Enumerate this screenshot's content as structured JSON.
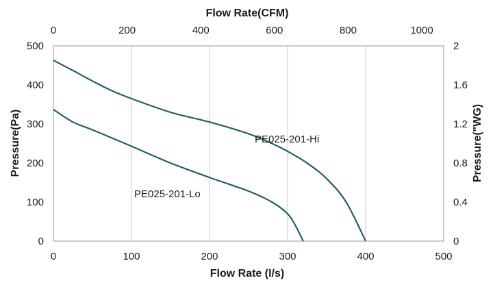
{
  "chart_data": {
    "type": "line",
    "x_bottom": {
      "label": "Flow Rate (l/s)",
      "range": [
        0,
        500
      ],
      "ticks": [
        0,
        100,
        200,
        300,
        400,
        500
      ]
    },
    "x_top": {
      "label": "Flow Rate(CFM)",
      "range": [
        0,
        1059.44
      ],
      "ticks": [
        0,
        200,
        400,
        600,
        800,
        1000
      ]
    },
    "y_left": {
      "label": "Pressure(Pa)",
      "range": [
        0,
        500
      ],
      "ticks": [
        0,
        100,
        200,
        300,
        400,
        500
      ]
    },
    "y_right": {
      "label": "Pressure(\"WG)",
      "range": [
        0,
        2
      ],
      "tick_labels": [
        "0",
        "0.4",
        "0.8",
        "1.2",
        "1.6",
        "2"
      ]
    },
    "grid": "vertical",
    "series": [
      {
        "name": "PE025-201-Hi",
        "color": "#1f5f6b",
        "x": [
          0,
          25,
          50,
          75,
          100,
          150,
          200,
          250,
          280,
          300,
          325,
          350,
          375,
          400
        ],
        "y": [
          463,
          437,
          410,
          385,
          365,
          330,
          305,
          275,
          250,
          230,
          200,
          160,
          100,
          0
        ]
      },
      {
        "name": "PE025-201-Lo",
        "color": "#1f5f6b",
        "x": [
          0,
          25,
          50,
          100,
          150,
          200,
          250,
          280,
          300,
          310,
          320
        ],
        "y": [
          337,
          305,
          285,
          243,
          200,
          163,
          128,
          100,
          70,
          40,
          0
        ]
      }
    ]
  }
}
